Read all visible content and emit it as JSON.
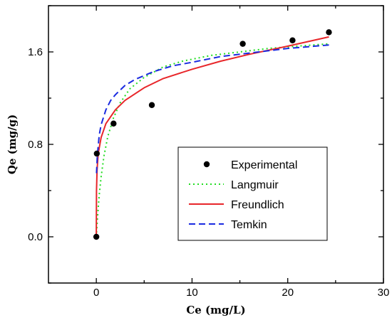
{
  "chart_data": {
    "type": "scatter",
    "xlabel": "Ce (mg/L)",
    "ylabel": "Qe (mg/g)",
    "xlim": [
      -5,
      30
    ],
    "ylim": [
      -0.4,
      2.0
    ],
    "xticks": [
      0,
      10,
      20,
      30
    ],
    "xtick_labels": [
      "0",
      "10",
      "20",
      "30"
    ],
    "yticks": [
      0.0,
      0.8,
      1.6
    ],
    "ytick_labels": [
      "0.0",
      "0.8",
      "1.6"
    ],
    "grid": false,
    "legend_position": "center-right",
    "series": [
      {
        "name": "Experimental",
        "kind": "scatter",
        "color": "#000000",
        "x": [
          0,
          0.05,
          1.8,
          5.8,
          15.3,
          20.5,
          24.3
        ],
        "y": [
          0.0,
          0.72,
          0.98,
          1.14,
          1.67,
          1.7,
          1.77
        ]
      },
      {
        "name": "Langmuir",
        "kind": "line",
        "style": "dotted",
        "color": "#22dd22",
        "x": [
          0,
          0.1,
          0.3,
          0.5,
          0.8,
          1.2,
          1.8,
          2.5,
          3.5,
          5,
          7,
          9,
          12,
          15,
          18,
          21,
          24.3
        ],
        "y": [
          0,
          0.14,
          0.36,
          0.52,
          0.7,
          0.87,
          1.03,
          1.16,
          1.28,
          1.38,
          1.47,
          1.52,
          1.57,
          1.6,
          1.63,
          1.65,
          1.67
        ]
      },
      {
        "name": "Freundlich",
        "kind": "line",
        "style": "solid",
        "color": "#e8262a",
        "x": [
          0,
          0.02,
          0.08,
          0.2,
          0.5,
          1,
          2,
          3,
          5,
          7,
          10,
          13,
          16,
          20,
          24.3
        ],
        "y": [
          0,
          0.4,
          0.58,
          0.72,
          0.86,
          0.98,
          1.1,
          1.18,
          1.29,
          1.37,
          1.45,
          1.52,
          1.58,
          1.65,
          1.73
        ]
      },
      {
        "name": "Temkin",
        "kind": "line",
        "style": "dashed",
        "color": "#1a2ae0",
        "x": [
          0.02,
          0.1,
          0.3,
          0.5,
          1,
          1.5,
          2,
          3,
          4,
          6,
          8,
          10,
          13,
          16,
          20,
          24.3
        ],
        "y": [
          0.55,
          0.7,
          0.88,
          0.97,
          1.1,
          1.18,
          1.23,
          1.31,
          1.36,
          1.43,
          1.48,
          1.51,
          1.56,
          1.59,
          1.63,
          1.66
        ]
      }
    ]
  }
}
